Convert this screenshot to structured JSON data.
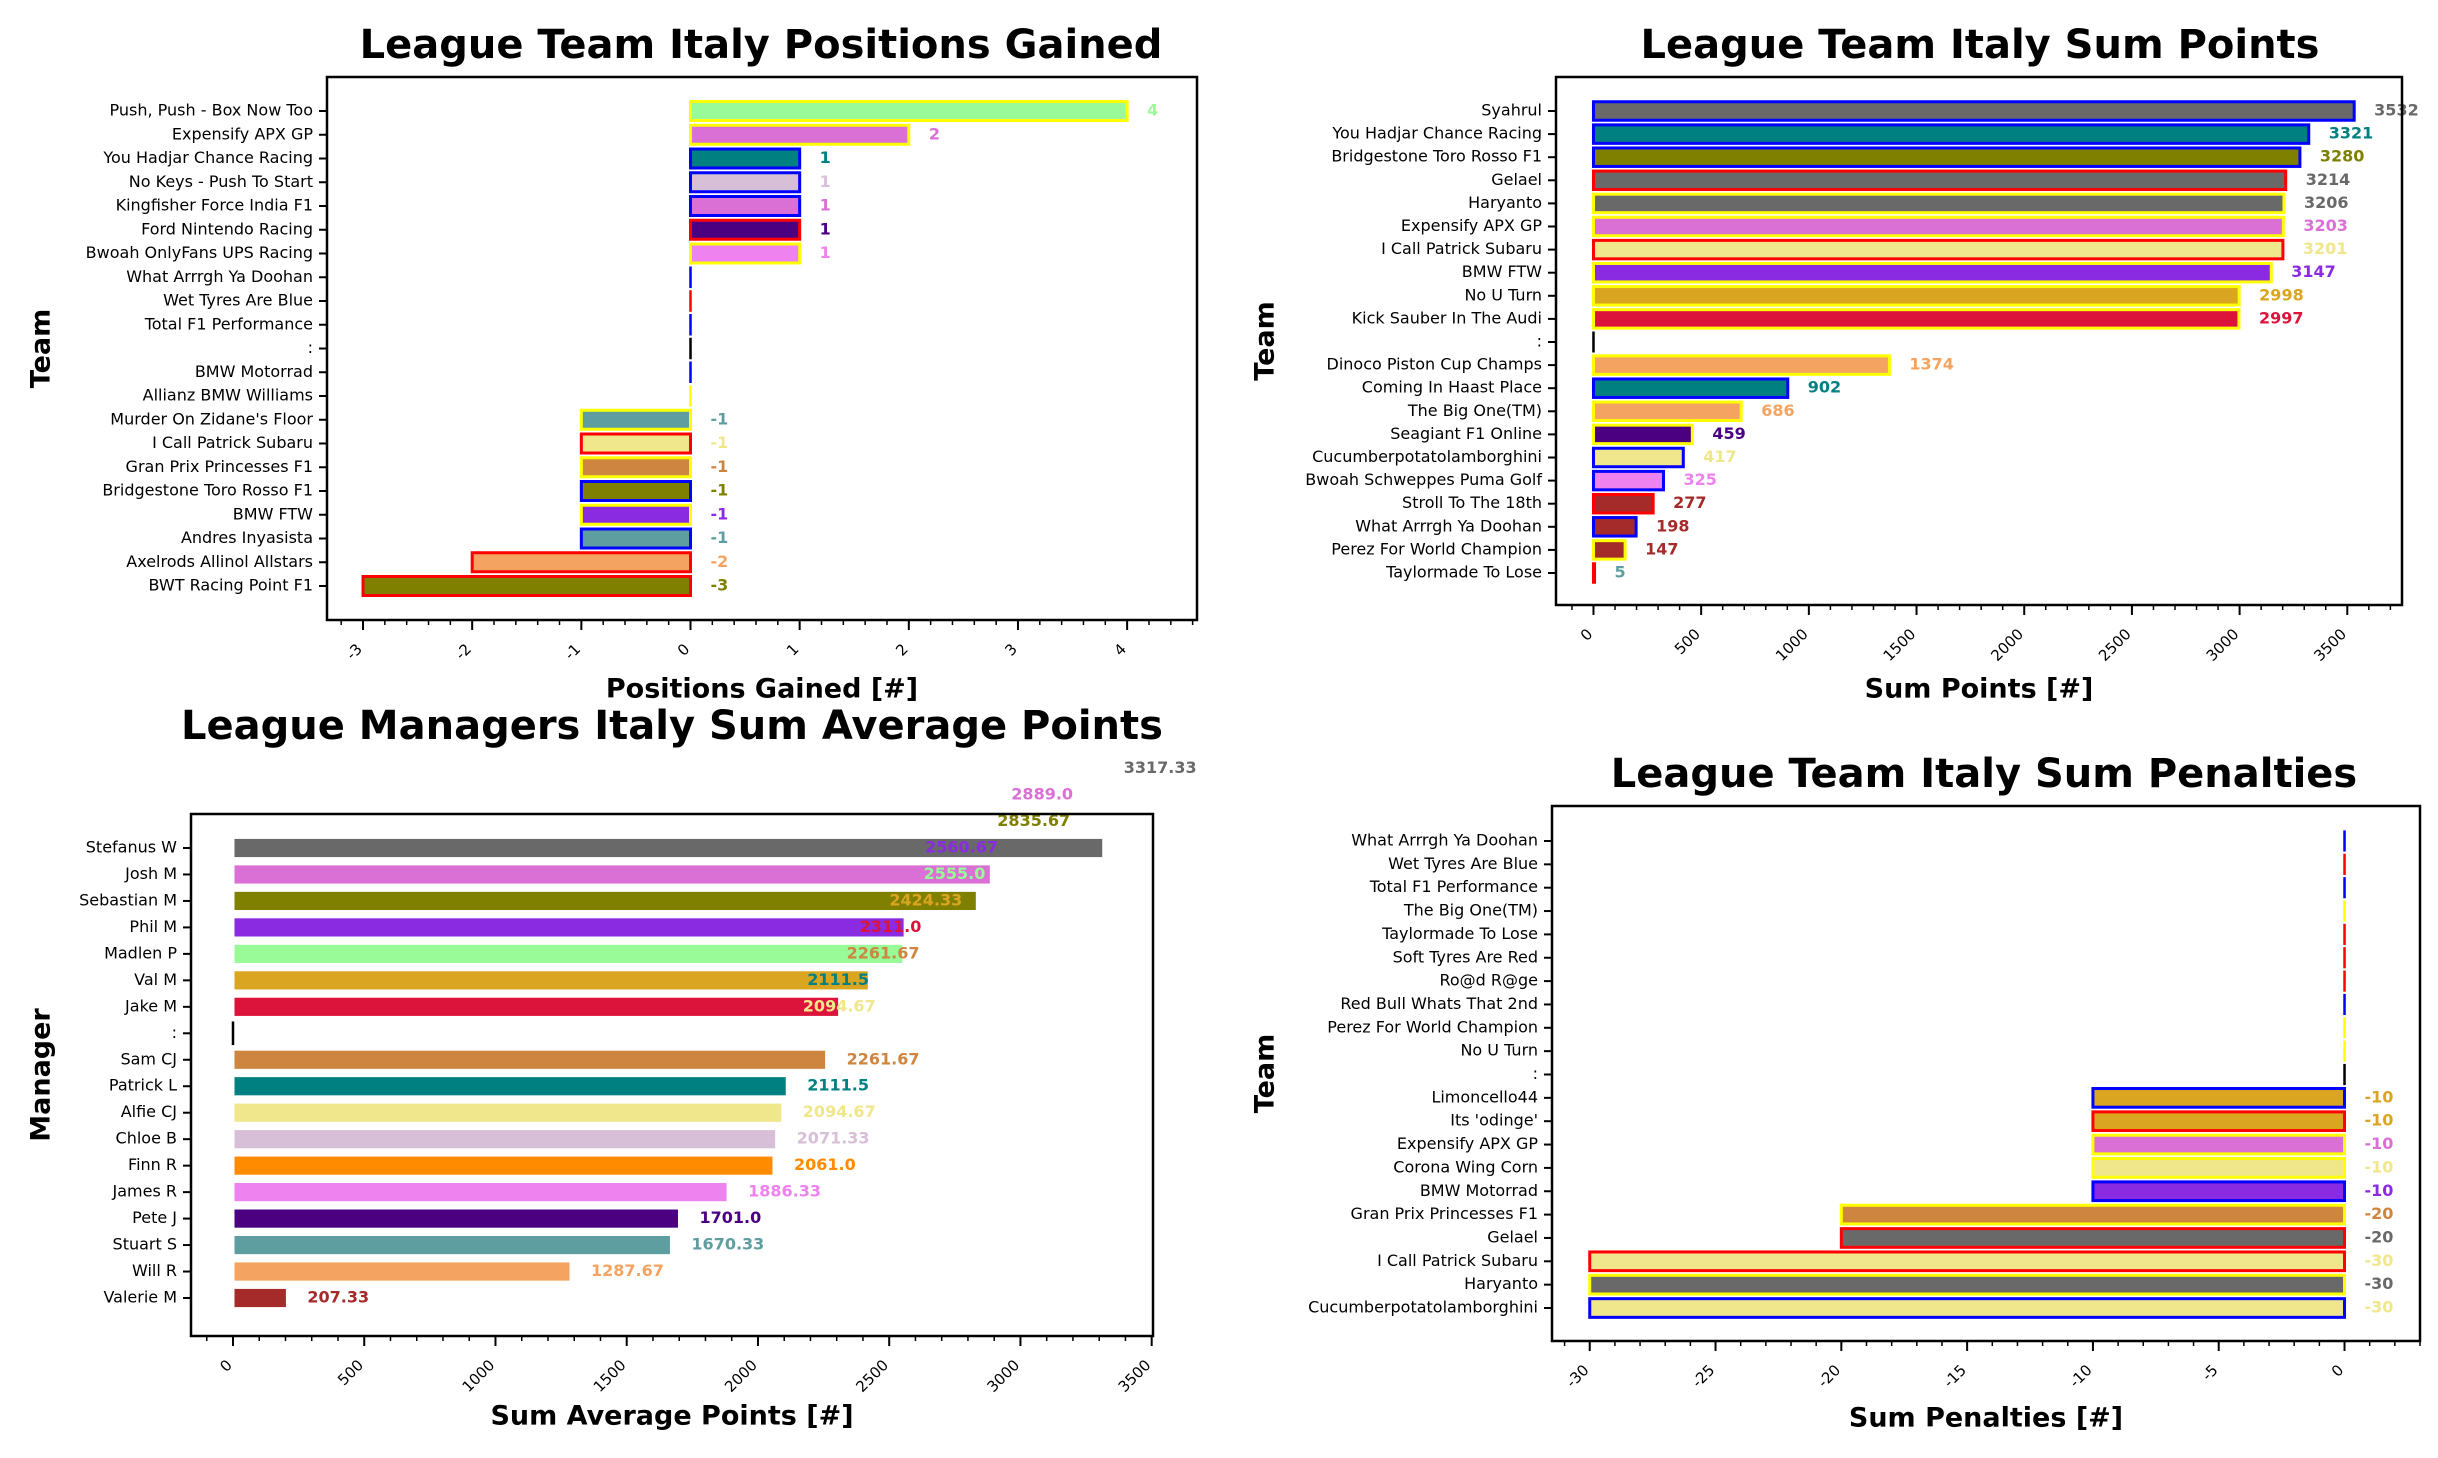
{
  "chart_data": [
    {
      "type": "bar",
      "orientation": "horizontal",
      "title": "League Team Italy Positions Gained",
      "xlabel": "Positions Gained [#]",
      "ylabel": "Team",
      "xlim": [
        -3.33,
        4.64
      ],
      "xticks": [
        "-3",
        "-2",
        "-1",
        "0",
        "1",
        "2",
        "3",
        "4"
      ],
      "grid": false,
      "bars": [
        {
          "name": "Push, Push - Box Now Too",
          "value": 4,
          "color": "#98fb98",
          "edge": "#ffff00",
          "label": "4"
        },
        {
          "name": "Expensify APX GP",
          "value": 2,
          "color": "#da70d6",
          "edge": "#ffff00",
          "label": "2"
        },
        {
          "name": "You Hadjar Chance Racing",
          "value": 1,
          "color": "#008080",
          "edge": "#0000ff",
          "label": "1"
        },
        {
          "name": "No Keys - Push To Start",
          "value": 1,
          "color": "#d8bfd8",
          "edge": "#0000ff",
          "label": "1"
        },
        {
          "name": "Kingfisher Force India F1",
          "value": 1,
          "color": "#da70d6",
          "edge": "#0000ff",
          "label": "1"
        },
        {
          "name": "Ford Nintendo Racing",
          "value": 1,
          "color": "#4b0082",
          "edge": "#ff0000",
          "label": "1"
        },
        {
          "name": "Bwoah OnlyFans UPS Racing",
          "value": 1,
          "color": "#ee82ee",
          "edge": "#ffff00",
          "label": "1"
        },
        {
          "name": "What Arrrgh Ya Doohan",
          "value": 0,
          "color": "#ffffff",
          "edge": "#0000ff",
          "label": null
        },
        {
          "name": "Wet Tyres Are Blue",
          "value": 0,
          "color": "#ffffff",
          "edge": "#ff0000",
          "label": null
        },
        {
          "name": "Total F1 Performance",
          "value": 0,
          "color": "#ffffff",
          "edge": "#0000ff",
          "label": null
        },
        {
          "name": ":",
          "value": 0,
          "color": "#000000",
          "edge": "#000000",
          "label": null
        },
        {
          "name": "BMW Motorrad",
          "value": 0,
          "color": "#ffffff",
          "edge": "#0000ff",
          "label": null
        },
        {
          "name": "Allianz BMW Williams",
          "value": 0,
          "color": "#ffffff",
          "edge": "#ffff00",
          "label": null
        },
        {
          "name": "Murder On Zidane's Floor",
          "value": -1,
          "color": "#5f9ea0",
          "edge": "#ffff00",
          "label": "-1"
        },
        {
          "name": "I Call Patrick Subaru",
          "value": -1,
          "color": "#f0e68c",
          "edge": "#ff0000",
          "label": "-1"
        },
        {
          "name": "Gran Prix Princesses F1",
          "value": -1,
          "color": "#cd853f",
          "edge": "#ffff00",
          "label": "-1"
        },
        {
          "name": "Bridgestone Toro Rosso F1",
          "value": -1,
          "color": "#808000",
          "edge": "#0000ff",
          "label": "-1"
        },
        {
          "name": "BMW FTW",
          "value": -1,
          "color": "#8a2be2",
          "edge": "#ffff00",
          "label": "-1"
        },
        {
          "name": "Andres Inyasista",
          "value": -1,
          "color": "#5f9ea0",
          "edge": "#0000ff",
          "label": "-1"
        },
        {
          "name": "Axelrods Allinol Allstars",
          "value": -2,
          "color": "#f4a460",
          "edge": "#ff0000",
          "label": "-2"
        },
        {
          "name": "BWT Racing Point F1",
          "value": -3,
          "color": "#808000",
          "edge": "#ff0000",
          "label": "-3"
        }
      ]
    },
    {
      "type": "bar",
      "orientation": "horizontal",
      "title": "League Team Italy Sum Points",
      "xlabel": "Sum Points [#]",
      "ylabel": "Team",
      "xlim": [
        -174,
        3754
      ],
      "xticks": [
        "0",
        "500",
        "1000",
        "1500",
        "2000",
        "2500",
        "3000",
        "3500"
      ],
      "grid": false,
      "bars": [
        {
          "name": "Syahrul",
          "value": 3532,
          "color": "#696969",
          "edge": "#0000ff",
          "label": "3532"
        },
        {
          "name": "You Hadjar Chance Racing",
          "value": 3321,
          "color": "#008080",
          "edge": "#0000ff",
          "label": "3321"
        },
        {
          "name": "Bridgestone Toro Rosso F1",
          "value": 3280,
          "color": "#808000",
          "edge": "#0000ff",
          "label": "3280"
        },
        {
          "name": "Gelael",
          "value": 3214,
          "color": "#696969",
          "edge": "#ff0000",
          "label": "3214"
        },
        {
          "name": "Haryanto",
          "value": 3206,
          "color": "#696969",
          "edge": "#ffff00",
          "label": "3206"
        },
        {
          "name": "Expensify APX GP",
          "value": 3203,
          "color": "#da70d6",
          "edge": "#ffff00",
          "label": "3203"
        },
        {
          "name": "I Call Patrick Subaru",
          "value": 3201,
          "color": "#f0e68c",
          "edge": "#ff0000",
          "label": "3201"
        },
        {
          "name": "BMW FTW",
          "value": 3147,
          "color": "#8a2be2",
          "edge": "#ffff00",
          "label": "3147"
        },
        {
          "name": "No U Turn",
          "value": 2998,
          "color": "#daa520",
          "edge": "#ffff00",
          "label": "2998"
        },
        {
          "name": "Kick Sauber In The Audi",
          "value": 2997,
          "color": "#dc143c",
          "edge": "#ffff00",
          "label": "2997"
        },
        {
          "name": ":",
          "value": 0,
          "color": "#000000",
          "edge": "#000000",
          "label": null
        },
        {
          "name": "Dinoco Piston Cup Champs",
          "value": 1374,
          "color": "#f4a460",
          "edge": "#ffff00",
          "label": "1374"
        },
        {
          "name": "Coming In Haast Place",
          "value": 902,
          "color": "#008080",
          "edge": "#0000ff",
          "label": "902"
        },
        {
          "name": "The Big One(TM)",
          "value": 686,
          "color": "#f4a460",
          "edge": "#ffff00",
          "label": "686"
        },
        {
          "name": "Seagiant F1 Online",
          "value": 459,
          "color": "#4b0082",
          "edge": "#ffff00",
          "label": "459"
        },
        {
          "name": "Cucumberpotatolamborghini",
          "value": 417,
          "color": "#f0e68c",
          "edge": "#0000ff",
          "label": "417"
        },
        {
          "name": "Bwoah Schweppes Puma Golf",
          "value": 325,
          "color": "#ee82ee",
          "edge": "#0000ff",
          "label": "325"
        },
        {
          "name": "Stroll To The 18th",
          "value": 277,
          "color": "#a52a2a",
          "edge": "#ff0000",
          "label": "277"
        },
        {
          "name": "What Arrrgh Ya Doohan",
          "value": 198,
          "color": "#a52a2a",
          "edge": "#0000ff",
          "label": "198"
        },
        {
          "name": "Perez For World Champion",
          "value": 147,
          "color": "#a52a2a",
          "edge": "#ffff00",
          "label": "147"
        },
        {
          "name": "Taylormade To Lose",
          "value": 5,
          "color": "#5f9ea0",
          "edge": "#ff0000",
          "label": "5"
        }
      ]
    },
    {
      "type": "bar",
      "orientation": "horizontal",
      "title": "League Managers Italy Sum Average Points",
      "xlabel": "Sum Average Points [#]",
      "ylabel": "Manager",
      "xlim": [
        -160,
        3505
      ],
      "xticks": [
        "0",
        "500",
        "1000",
        "1500",
        "2000",
        "2500",
        "3000",
        "3500"
      ],
      "grid": false,
      "bars": [
        {
          "name": "Stefanus W",
          "value": 3317.33,
          "color": "#696969",
          "edge": "#ffffff",
          "label": null
        },
        {
          "name": "Josh M",
          "value": 2889.0,
          "color": "#da70d6",
          "edge": "#ffffff",
          "label": null
        },
        {
          "name": "Sebastian M",
          "value": 2835.67,
          "color": "#808000",
          "edge": "#ffffff",
          "label": null
        },
        {
          "name": "Phil M",
          "value": 2560.67,
          "color": "#8a2be2",
          "edge": "#ffffff",
          "label": null
        },
        {
          "name": "Madlen P",
          "value": 2555.0,
          "color": "#98fb98",
          "edge": "#ffffff",
          "label": null
        },
        {
          "name": "Val M",
          "value": 2424.33,
          "color": "#daa520",
          "edge": "#ffffff",
          "label": null
        },
        {
          "name": "Jake M",
          "value": 2311.0,
          "color": "#dc143c",
          "edge": "#ffffff",
          "label": null
        },
        {
          "name": ":",
          "value": 0,
          "color": "#000000",
          "edge": "#000000",
          "label": null
        },
        {
          "name": "Sam CJ",
          "value": 2261.67,
          "color": "#cd853f",
          "edge": "#ffffff",
          "label": "2261.67"
        },
        {
          "name": "Patrick L",
          "value": 2111.5,
          "color": "#008080",
          "edge": "#ffffff",
          "label": "2111.5"
        },
        {
          "name": "Alfie CJ",
          "value": 2094.67,
          "color": "#f0e68c",
          "edge": "#ffffff",
          "label": "2094.67"
        },
        {
          "name": "Chloe B",
          "value": 2071.33,
          "color": "#d8bfd8",
          "edge": "#ffffff",
          "label": "2071.33"
        },
        {
          "name": "Finn R",
          "value": 2061.0,
          "color": "#ff8c00",
          "edge": "#ffffff",
          "label": "2061.0"
        },
        {
          "name": "James R",
          "value": 1886.33,
          "color": "#ee82ee",
          "edge": "#ffffff",
          "label": "1886.33"
        },
        {
          "name": "Pete J",
          "value": 1701.0,
          "color": "#4b0082",
          "edge": "#ffffff",
          "label": "1701.0"
        },
        {
          "name": "Stuart S",
          "value": 1670.33,
          "color": "#5f9ea0",
          "edge": "#ffffff",
          "label": "1670.33"
        },
        {
          "name": "Will R",
          "value": 1287.67,
          "color": "#f4a460",
          "edge": "#ffffff",
          "label": "1287.67"
        },
        {
          "name": "Valerie M",
          "value": 207.33,
          "color": "#a52a2a",
          "edge": "#ffffff",
          "label": "207.33"
        }
      ],
      "annotations": [
        {
          "text": "3317.33",
          "value": 3317.33,
          "row": -3,
          "color": "#696969"
        },
        {
          "text": "2889.0",
          "value": 2889.0,
          "row": -2,
          "color": "#da70d6"
        },
        {
          "text": "2835.67",
          "value": 2835.67,
          "row": -1,
          "color": "#808000"
        },
        {
          "text": "2560.67",
          "value": 2560.67,
          "row": 0,
          "color": "#8a2be2"
        },
        {
          "text": "2555.0",
          "value": 2555.0,
          "row": 1,
          "color": "#98fb98"
        },
        {
          "text": "2424.33",
          "value": 2424.33,
          "row": 2,
          "color": "#daa520"
        },
        {
          "text": "2311.0",
          "value": 2311.0,
          "row": 3,
          "color": "#dc143c"
        },
        {
          "text": "2261.67",
          "value": 2261.67,
          "row": 4,
          "color": "#cd853f"
        },
        {
          "text": "2111.5",
          "value": 2111.5,
          "row": 5,
          "color": "#008080"
        },
        {
          "text": "2094.67",
          "value": 2094.67,
          "row": 6,
          "color": "#f0e68c"
        }
      ]
    },
    {
      "type": "bar",
      "orientation": "horizontal",
      "title": "League Team Italy Sum Penalties",
      "xlabel": "Sum Penalties [#]",
      "ylabel": "Team",
      "xlim": [
        -31.5,
        3.0
      ],
      "xticks": [
        "-30",
        "-25",
        "-20",
        "-15",
        "-10",
        "-5",
        "0"
      ],
      "grid": false,
      "bars": [
        {
          "name": "What Arrrgh Ya Doohan",
          "value": 0,
          "color": "#ffffff",
          "edge": "#0000ff",
          "label": null
        },
        {
          "name": "Wet Tyres Are Blue",
          "value": 0,
          "color": "#ffffff",
          "edge": "#ff0000",
          "label": null
        },
        {
          "name": "Total F1 Performance",
          "value": 0,
          "color": "#ffffff",
          "edge": "#0000ff",
          "label": null
        },
        {
          "name": "The Big One(TM)",
          "value": 0,
          "color": "#ffffff",
          "edge": "#ffff00",
          "label": null
        },
        {
          "name": "Taylormade To Lose",
          "value": 0,
          "color": "#ffffff",
          "edge": "#ff0000",
          "label": null
        },
        {
          "name": "Soft Tyres Are Red",
          "value": 0,
          "color": "#ffffff",
          "edge": "#ff0000",
          "label": null
        },
        {
          "name": "Ro@d R@ge",
          "value": 0,
          "color": "#ffffff",
          "edge": "#ff0000",
          "label": null
        },
        {
          "name": "Red Bull Whats That 2nd",
          "value": 0,
          "color": "#ffffff",
          "edge": "#0000ff",
          "label": null
        },
        {
          "name": "Perez For World Champion",
          "value": 0,
          "color": "#ffffff",
          "edge": "#ffff00",
          "label": null
        },
        {
          "name": "No U Turn",
          "value": 0,
          "color": "#ffffff",
          "edge": "#ffff00",
          "label": null
        },
        {
          "name": ":",
          "value": 0,
          "color": "#000000",
          "edge": "#000000",
          "label": null
        },
        {
          "name": "Limoncello44",
          "value": -10,
          "color": "#daa520",
          "edge": "#0000ff",
          "label": "-10"
        },
        {
          "name": "Its 'odinge'",
          "value": -10,
          "color": "#daa520",
          "edge": "#ff0000",
          "label": "-10"
        },
        {
          "name": "Expensify APX GP",
          "value": -10,
          "color": "#da70d6",
          "edge": "#ffff00",
          "label": "-10"
        },
        {
          "name": "Corona Wing Corn",
          "value": -10,
          "color": "#f0e68c",
          "edge": "#ffff00",
          "label": "-10"
        },
        {
          "name": "BMW Motorrad",
          "value": -10,
          "color": "#8a2be2",
          "edge": "#0000ff",
          "label": "-10"
        },
        {
          "name": "Gran Prix Princesses F1",
          "value": -20,
          "color": "#cd853f",
          "edge": "#ffff00",
          "label": "-20"
        },
        {
          "name": "Gelael",
          "value": -20,
          "color": "#696969",
          "edge": "#ff0000",
          "label": "-20"
        },
        {
          "name": "I Call Patrick Subaru",
          "value": -30,
          "color": "#f0e68c",
          "edge": "#ff0000",
          "label": "-30"
        },
        {
          "name": "Haryanto",
          "value": -30,
          "color": "#696969",
          "edge": "#ffff00",
          "label": "-30"
        },
        {
          "name": "Cucumberpotatolamborghini",
          "value": -30,
          "color": "#f0e68c",
          "edge": "#0000ff",
          "label": "-30"
        }
      ]
    }
  ]
}
